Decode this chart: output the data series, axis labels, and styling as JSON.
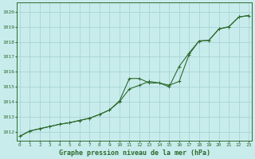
{
  "title": "Graphe pression niveau de la mer (hPa)",
  "bg_color": "#c8ecec",
  "grid_color": "#aad4d4",
  "line_color": "#2d6a2d",
  "xlabel_color": "#2d6a2d",
  "ylabel_ticks": [
    1012,
    1013,
    1014,
    1015,
    1016,
    1017,
    1018,
    1019,
    1020
  ],
  "xlim": [
    -0.3,
    23.3
  ],
  "ylim": [
    1011.4,
    1020.6
  ],
  "series1_x": [
    0,
    1,
    2,
    3,
    4,
    5,
    6,
    7,
    8,
    9,
    10,
    11,
    12,
    13,
    14,
    15,
    16,
    17,
    18,
    19,
    20,
    21,
    22,
    23
  ],
  "series1_y": [
    1011.7,
    1012.05,
    1012.2,
    1012.35,
    1012.5,
    1012.6,
    1012.75,
    1012.9,
    1013.15,
    1013.45,
    1014.0,
    1014.85,
    1015.1,
    1015.35,
    1015.25,
    1015.1,
    1015.35,
    1017.15,
    1018.05,
    1018.1,
    1018.85,
    1019.0,
    1019.65,
    1019.75
  ],
  "series2_x": [
    0,
    1,
    2,
    3,
    4,
    5,
    6,
    7,
    8,
    9,
    10,
    11,
    12,
    13,
    14,
    15,
    16,
    17,
    18,
    19,
    20,
    21,
    22,
    23
  ],
  "series2_y": [
    1011.7,
    1012.05,
    1012.2,
    1012.35,
    1012.5,
    1012.6,
    1012.75,
    1012.9,
    1013.15,
    1013.45,
    1014.05,
    1015.55,
    1015.55,
    1015.25,
    1015.25,
    1015.0,
    1016.35,
    1017.25,
    1018.05,
    1018.1,
    1018.85,
    1019.0,
    1019.65,
    1019.75
  ]
}
